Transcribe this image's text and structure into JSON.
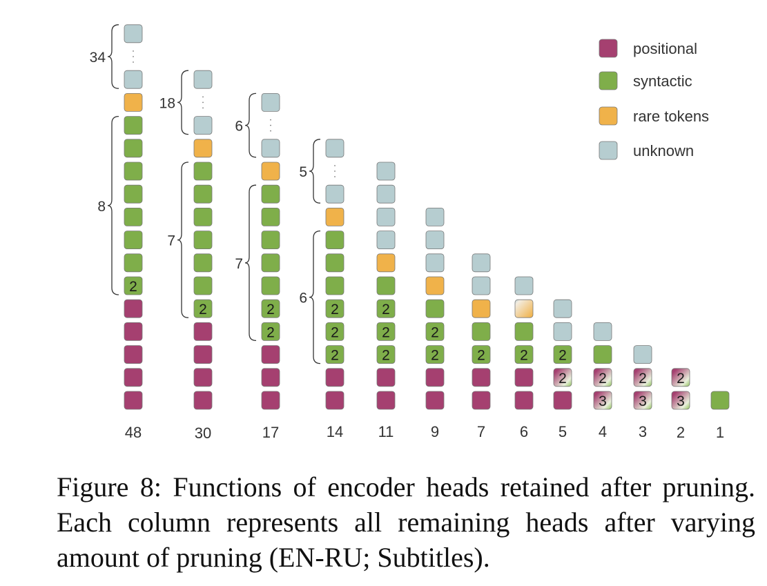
{
  "chart_data": {
    "type": "stacked-squares",
    "description_note": "Each column shows remaining encoder heads after pruning; squares colored by function, listed bottom to top.",
    "legend": [
      {
        "key": "positional",
        "label": "positional",
        "color": "#a54070"
      },
      {
        "key": "syntactic",
        "label": "syntactic",
        "color": "#7fae4a"
      },
      {
        "key": "rare",
        "label": "rare tokens",
        "color": "#f0b24a"
      },
      {
        "key": "unknown",
        "label": "unknown",
        "color": "#b6cdd0"
      }
    ],
    "columns": [
      {
        "label": "48",
        "cells": [
          "pos",
          "pos",
          "pos",
          "pos",
          "pos",
          {
            "t": "syn",
            "n": "2"
          },
          "syn",
          "syn",
          "syn",
          "syn",
          "syn",
          "syn",
          "syn",
          "rare",
          "unk",
          "dots",
          "unk"
        ],
        "braces": [
          {
            "label": "8",
            "from": 5,
            "to": 12
          },
          {
            "label": "34",
            "from": 14,
            "to": 16
          }
        ]
      },
      {
        "label": "30",
        "cells": [
          "pos",
          "pos",
          "pos",
          "pos",
          {
            "t": "syn",
            "n": "2"
          },
          "syn",
          "syn",
          "syn",
          "syn",
          "syn",
          "syn",
          "rare",
          "unk",
          "dots",
          "unk"
        ],
        "braces": [
          {
            "label": "7",
            "from": 4,
            "to": 10
          },
          {
            "label": "18",
            "from": 12,
            "to": 14
          }
        ]
      },
      {
        "label": "17",
        "cells": [
          "pos",
          "pos",
          "pos",
          {
            "t": "syn",
            "n": "2"
          },
          {
            "t": "syn",
            "n": "2"
          },
          "syn",
          "syn",
          "syn",
          "syn",
          "syn",
          "rare",
          "unk",
          "dots",
          "unk"
        ],
        "braces": [
          {
            "label": "7",
            "from": 3,
            "to": 9
          },
          {
            "label": "6",
            "from": 11,
            "to": 13
          }
        ]
      },
      {
        "label": "14",
        "cells": [
          "pos",
          "pos",
          {
            "t": "syn",
            "n": "2"
          },
          {
            "t": "syn",
            "n": "2"
          },
          {
            "t": "syn",
            "n": "2"
          },
          "syn",
          "syn",
          "syn",
          "rare",
          "unk",
          "dots",
          "unk"
        ],
        "braces": [
          {
            "label": "6",
            "from": 2,
            "to": 7
          },
          {
            "label": "5",
            "from": 9,
            "to": 11
          }
        ]
      },
      {
        "label": "11",
        "cells": [
          "pos",
          "pos",
          {
            "t": "syn",
            "n": "2"
          },
          {
            "t": "syn",
            "n": "2"
          },
          {
            "t": "syn",
            "n": "2"
          },
          "syn",
          "rare",
          "unk",
          "unk",
          "unk",
          "unk"
        ],
        "braces": []
      },
      {
        "label": "9",
        "cells": [
          "pos",
          "pos",
          {
            "t": "syn",
            "n": "2"
          },
          {
            "t": "syn",
            "n": "2"
          },
          "syn",
          "rare",
          "unk",
          "unk",
          "unk"
        ],
        "braces": []
      },
      {
        "label": "7",
        "cells": [
          "pos",
          "pos",
          {
            "t": "syn",
            "n": "2"
          },
          "syn",
          "rare",
          "unk",
          "unk"
        ],
        "braces": []
      },
      {
        "label": "6",
        "cells": [
          "pos",
          "pos",
          {
            "t": "syn",
            "n": "2"
          },
          "syn",
          "rare-unk",
          "unk"
        ],
        "braces": []
      },
      {
        "label": "5",
        "cells": [
          "pos",
          {
            "t": "pos-syn",
            "n": "2"
          },
          {
            "t": "syn",
            "n": "2"
          },
          "unk",
          "unk"
        ],
        "braces": []
      },
      {
        "label": "4",
        "cells": [
          {
            "t": "pos-syn",
            "n": "3"
          },
          {
            "t": "pos-syn",
            "n": "2"
          },
          "syn",
          "unk"
        ],
        "braces": []
      },
      {
        "label": "3",
        "cells": [
          {
            "t": "pos-syn",
            "n": "3"
          },
          {
            "t": "pos-syn",
            "n": "2"
          },
          "unk"
        ],
        "braces": []
      },
      {
        "label": "2",
        "cells": [
          {
            "t": "pos-syn",
            "n": "3"
          },
          {
            "t": "pos-syn",
            "n": "2"
          }
        ],
        "braces": []
      },
      {
        "label": "1",
        "cells": [
          "syn"
        ],
        "braces": []
      }
    ]
  },
  "caption": {
    "text": "Figure 8:  Functions of encoder heads retained after pruning.  Each column represents all remaining heads after varying amount of pruning (EN-RU; Subtitles)."
  }
}
